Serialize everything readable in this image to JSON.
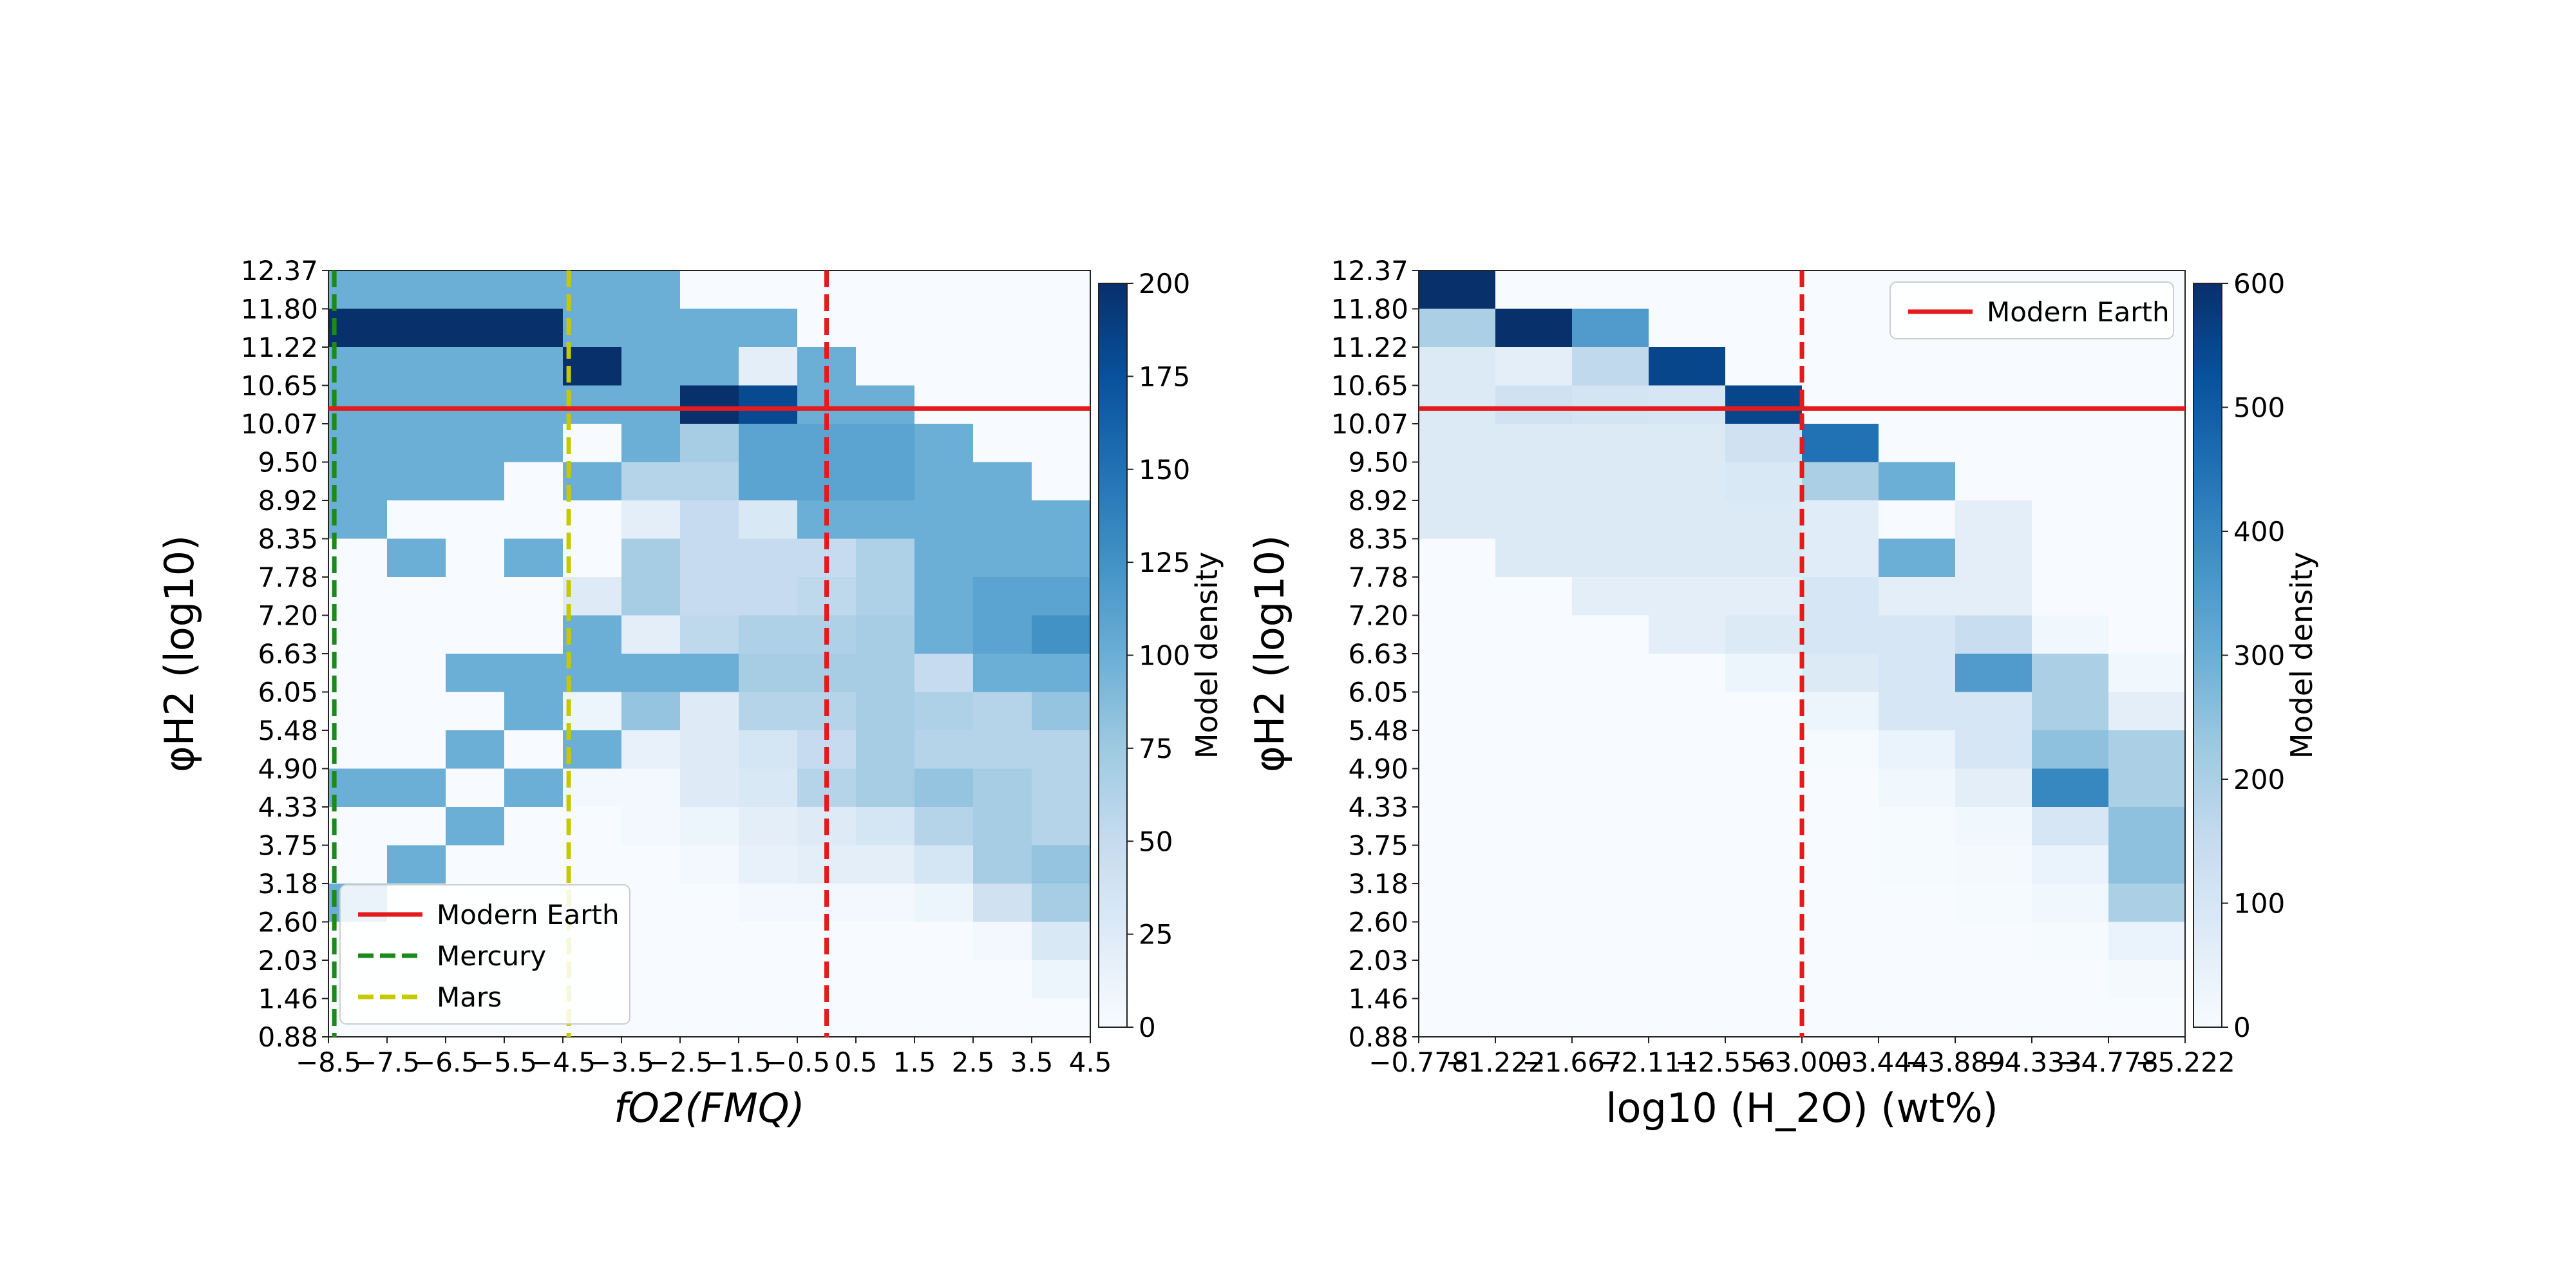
{
  "colormap": {
    "name": "Blues",
    "stops": [
      "#f7fbff",
      "#deebf7",
      "#c6dbef",
      "#9ecae1",
      "#6baed6",
      "#4292c6",
      "#2171b5",
      "#08519c",
      "#08306b"
    ]
  },
  "line_colors": {
    "red": "#e41a1c",
    "green": "#1a8a1a",
    "yellow": "#c8c800"
  },
  "chart_data": [
    {
      "type": "heatmap",
      "xlabel": "fO2(FMQ)",
      "ylabel": "φH2 (log10)",
      "x_ticks": [
        "−8.5",
        "−7.5",
        "−6.5",
        "−5.5",
        "−4.5",
        "−3.5",
        "−2.5",
        "−1.5",
        "−0.5",
        "0.5",
        "1.5",
        "2.5",
        "3.5",
        "4.5"
      ],
      "y_ticks": [
        "12.37",
        "11.80",
        "11.22",
        "10.65",
        "10.07",
        "9.50",
        "8.92",
        "8.35",
        "7.78",
        "7.20",
        "6.63",
        "6.05",
        "5.48",
        "4.90",
        "4.33",
        "3.75",
        "3.18",
        "2.60",
        "2.03",
        "1.46",
        "0.88"
      ],
      "x_range": [
        -8.5,
        4.5
      ],
      "n_cols": 13,
      "n_rows": 20,
      "colorbar": {
        "label": "Model density",
        "min": 0,
        "max": 200,
        "ticks": [
          "0",
          "25",
          "50",
          "75",
          "100",
          "125",
          "150",
          "175",
          "200"
        ]
      },
      "grid_rows_top_to_bottom": [
        [
          100,
          100,
          100,
          100,
          100,
          100,
          0,
          0,
          0,
          0,
          0,
          0,
          0
        ],
        [
          200,
          200,
          200,
          200,
          100,
          100,
          100,
          100,
          0,
          0,
          0,
          0,
          0
        ],
        [
          100,
          100,
          100,
          100,
          200,
          100,
          100,
          20,
          100,
          0,
          0,
          0,
          0
        ],
        [
          100,
          100,
          100,
          100,
          100,
          100,
          200,
          180,
          100,
          100,
          0,
          0,
          0
        ],
        [
          100,
          100,
          100,
          100,
          0,
          100,
          70,
          110,
          110,
          110,
          100,
          0,
          0
        ],
        [
          100,
          100,
          100,
          0,
          100,
          60,
          60,
          110,
          110,
          110,
          100,
          100,
          0
        ],
        [
          100,
          0,
          0,
          0,
          0,
          20,
          50,
          30,
          100,
          100,
          100,
          100,
          100
        ],
        [
          0,
          100,
          0,
          100,
          0,
          70,
          50,
          50,
          50,
          65,
          100,
          100,
          100
        ],
        [
          0,
          0,
          0,
          0,
          25,
          70,
          50,
          50,
          55,
          65,
          100,
          110,
          110
        ],
        [
          0,
          0,
          0,
          0,
          100,
          20,
          55,
          65,
          65,
          70,
          100,
          110,
          125
        ],
        [
          0,
          0,
          100,
          100,
          100,
          100,
          100,
          70,
          70,
          70,
          50,
          100,
          100
        ],
        [
          0,
          0,
          0,
          100,
          10,
          80,
          25,
          60,
          60,
          70,
          65,
          60,
          80
        ],
        [
          0,
          0,
          100,
          0,
          100,
          15,
          25,
          35,
          50,
          70,
          60,
          60,
          60
        ],
        [
          100,
          100,
          0,
          100,
          5,
          5,
          25,
          30,
          60,
          70,
          80,
          70,
          60
        ],
        [
          0,
          0,
          100,
          0,
          0,
          5,
          10,
          20,
          25,
          35,
          60,
          70,
          60
        ],
        [
          0,
          100,
          0,
          0,
          0,
          0,
          5,
          15,
          20,
          20,
          35,
          70,
          80
        ],
        [
          100,
          0,
          0,
          0,
          0,
          0,
          0,
          5,
          5,
          5,
          10,
          40,
          70
        ],
        [
          0,
          0,
          0,
          0,
          0,
          0,
          0,
          0,
          0,
          0,
          0,
          5,
          30
        ],
        [
          0,
          0,
          0,
          0,
          0,
          0,
          0,
          0,
          0,
          0,
          0,
          0,
          10
        ],
        [
          0,
          0,
          0,
          0,
          0,
          0,
          0,
          0,
          0,
          0,
          0,
          0,
          0
        ]
      ],
      "hlines": [
        {
          "label": "Modern Earth",
          "y": 10.3,
          "color": "red",
          "style": "solid"
        }
      ],
      "vlines": [
        {
          "label": "Mercury",
          "x": -8.4,
          "color": "green",
          "style": "dashed"
        },
        {
          "label": "Mars",
          "x": -4.4,
          "color": "yellow",
          "style": "dashed"
        },
        {
          "label": "",
          "x": 0.0,
          "color": "red",
          "style": "dashed"
        }
      ],
      "legend": {
        "location": "lower-left",
        "entries": [
          "Modern Earth",
          "Mercury",
          "Mars"
        ]
      }
    },
    {
      "type": "heatmap",
      "xlabel": "log10 (H_2O) (wt%)",
      "ylabel": "φH2 (log10)",
      "x_ticks": [
        "−0.778",
        "−1.222",
        "−1.667",
        "−2.111",
        "−2.556",
        "−3.000",
        "−3.444",
        "−3.889",
        "−4.333",
        "−4.778",
        "−5.222"
      ],
      "y_ticks": [
        "12.37",
        "11.80",
        "11.22",
        "10.65",
        "10.07",
        "9.50",
        "8.92",
        "8.35",
        "7.78",
        "7.20",
        "6.63",
        "6.05",
        "5.48",
        "4.90",
        "4.33",
        "3.75",
        "3.18",
        "2.60",
        "2.03",
        "1.46",
        "0.88"
      ],
      "x_range": [
        -0.778,
        -5.222
      ],
      "n_cols": 10,
      "n_rows": 20,
      "colorbar": {
        "label": "Model density",
        "min": 0,
        "max": 600,
        "ticks": [
          "0",
          "100",
          "200",
          "300",
          "400",
          "500",
          "600"
        ]
      },
      "grid_rows_top_to_bottom": [
        [
          600,
          0,
          0,
          0,
          0,
          0,
          0,
          0,
          0,
          0
        ],
        [
          200,
          600,
          350,
          0,
          0,
          0,
          0,
          0,
          0,
          0
        ],
        [
          80,
          60,
          160,
          550,
          0,
          0,
          0,
          0,
          0,
          0
        ],
        [
          80,
          120,
          110,
          100,
          550,
          0,
          0,
          0,
          0,
          0
        ],
        [
          80,
          80,
          80,
          80,
          120,
          450,
          0,
          0,
          0,
          0
        ],
        [
          80,
          80,
          80,
          80,
          90,
          200,
          300,
          0,
          0,
          0
        ],
        [
          80,
          80,
          80,
          80,
          80,
          70,
          0,
          60,
          0,
          0
        ],
        [
          0,
          80,
          80,
          80,
          80,
          70,
          300,
          60,
          0,
          0
        ],
        [
          0,
          0,
          60,
          60,
          60,
          100,
          60,
          60,
          0,
          0
        ],
        [
          0,
          0,
          0,
          60,
          80,
          100,
          100,
          140,
          20,
          0
        ],
        [
          0,
          0,
          0,
          0,
          30,
          80,
          100,
          350,
          200,
          20
        ],
        [
          0,
          0,
          0,
          0,
          0,
          30,
          100,
          100,
          200,
          60
        ],
        [
          0,
          0,
          0,
          0,
          0,
          5,
          40,
          100,
          250,
          200
        ],
        [
          0,
          0,
          0,
          0,
          0,
          0,
          20,
          60,
          400,
          200
        ],
        [
          0,
          0,
          0,
          0,
          0,
          0,
          5,
          20,
          100,
          250
        ],
        [
          0,
          0,
          0,
          0,
          0,
          0,
          5,
          10,
          40,
          250
        ],
        [
          0,
          0,
          0,
          0,
          0,
          0,
          0,
          5,
          20,
          200
        ],
        [
          0,
          0,
          0,
          0,
          0,
          0,
          0,
          0,
          5,
          40
        ],
        [
          0,
          0,
          0,
          0,
          0,
          0,
          0,
          0,
          0,
          10
        ],
        [
          0,
          0,
          0,
          0,
          0,
          0,
          0,
          0,
          0,
          0
        ]
      ],
      "hlines": [
        {
          "label": "Modern Earth",
          "y": 10.3,
          "color": "red",
          "style": "solid"
        }
      ],
      "vlines": [
        {
          "label": "",
          "x": -3.0,
          "color": "red",
          "style": "dashed"
        }
      ],
      "legend": {
        "location": "upper-right",
        "entries": [
          "Modern Earth"
        ]
      }
    }
  ]
}
